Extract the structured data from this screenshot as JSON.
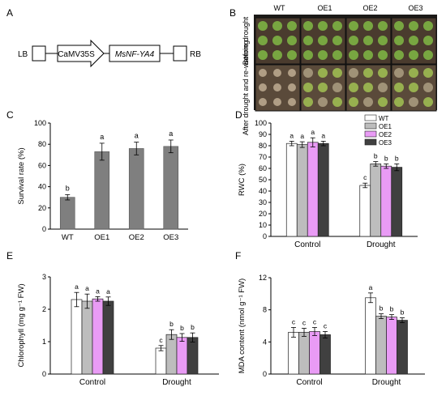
{
  "panels": {
    "A": "A",
    "B": "B",
    "C": "C",
    "D": "D",
    "E": "E",
    "F": "F"
  },
  "construct": {
    "lb": "LB",
    "promoter": "CaMV35S",
    "gene": "MsNF-YA4",
    "rb": "RB"
  },
  "photo": {
    "columns": [
      "WT",
      "OE1",
      "OE2",
      "OE3"
    ],
    "rows": [
      "Before drought",
      "After drought and re-watering"
    ]
  },
  "colors": {
    "WT": "#ffffff",
    "OE1": "#bdbdbd",
    "OE2": "#e99bf5",
    "OE3": "#404040",
    "survival_bar": "#7f7f7f"
  },
  "legend": [
    "WT",
    "OE1",
    "OE2",
    "OE3"
  ],
  "chart_data": [
    {
      "panel": "C",
      "type": "bar",
      "categories": [
        "WT",
        "OE1",
        "OE2",
        "OE3"
      ],
      "values": [
        30,
        73,
        76,
        78
      ],
      "errors": [
        2.5,
        8,
        6,
        6
      ],
      "letters": [
        "b",
        "a",
        "a",
        "a"
      ],
      "ylabel": "Survival rate (%)",
      "ylim": [
        0,
        100
      ],
      "yticks": [
        0,
        20,
        40,
        60,
        80,
        100
      ]
    },
    {
      "panel": "D",
      "type": "bar",
      "categories": [
        "Control",
        "Drought"
      ],
      "series": [
        {
          "name": "WT",
          "values": [
            82,
            45
          ],
          "errors": [
            2,
            2
          ],
          "letters": [
            "a",
            "c"
          ]
        },
        {
          "name": "OE1",
          "values": [
            81,
            64
          ],
          "errors": [
            2.5,
            2
          ],
          "letters": [
            "a",
            "b"
          ]
        },
        {
          "name": "OE2",
          "values": [
            83,
            62
          ],
          "errors": [
            4,
            2
          ],
          "letters": [
            "a",
            "b"
          ]
        },
        {
          "name": "OE3",
          "values": [
            82,
            61
          ],
          "errors": [
            2,
            3
          ],
          "letters": [
            "a",
            "b"
          ]
        }
      ],
      "ylabel": "RWC (%)",
      "ylim": [
        0,
        100
      ],
      "yticks": [
        0,
        10,
        20,
        30,
        40,
        50,
        60,
        70,
        80,
        90,
        100
      ]
    },
    {
      "panel": "E",
      "type": "bar",
      "categories": [
        "Control",
        "Drought"
      ],
      "series": [
        {
          "name": "WT",
          "values": [
            2.3,
            0.8
          ],
          "errors": [
            0.22,
            0.08
          ],
          "letters": [
            "a",
            "c"
          ]
        },
        {
          "name": "OE1",
          "values": [
            2.25,
            1.22
          ],
          "errors": [
            0.22,
            0.15
          ],
          "letters": [
            "a",
            "b"
          ]
        },
        {
          "name": "OE2",
          "values": [
            2.32,
            1.13
          ],
          "errors": [
            0.07,
            0.12
          ],
          "letters": [
            "a",
            "b"
          ]
        },
        {
          "name": "OE3",
          "values": [
            2.25,
            1.13
          ],
          "errors": [
            0.13,
            0.14
          ],
          "letters": [
            "a",
            "b"
          ]
        }
      ],
      "ylabel": "Chlorophyll (mg g⁻¹ FW)",
      "ylim": [
        0,
        3
      ],
      "yticks": [
        0,
        1,
        2,
        3
      ]
    },
    {
      "panel": "F",
      "type": "bar",
      "categories": [
        "Control",
        "Drought"
      ],
      "series": [
        {
          "name": "WT",
          "values": [
            5.2,
            9.5
          ],
          "errors": [
            0.6,
            0.6
          ],
          "letters": [
            "c",
            "a"
          ]
        },
        {
          "name": "OE1",
          "values": [
            5.2,
            7.2
          ],
          "errors": [
            0.5,
            0.3
          ],
          "letters": [
            "c",
            "b"
          ]
        },
        {
          "name": "OE2",
          "values": [
            5.3,
            7.1
          ],
          "errors": [
            0.5,
            0.3
          ],
          "letters": [
            "c",
            "b"
          ]
        },
        {
          "name": "OE3",
          "values": [
            4.9,
            6.7
          ],
          "errors": [
            0.4,
            0.3
          ],
          "letters": [
            "c",
            "b"
          ]
        }
      ],
      "ylabel": "MDA content (nmol g⁻¹ FW)",
      "ylim": [
        0,
        12
      ],
      "yticks": [
        0,
        4,
        8,
        12
      ]
    }
  ]
}
